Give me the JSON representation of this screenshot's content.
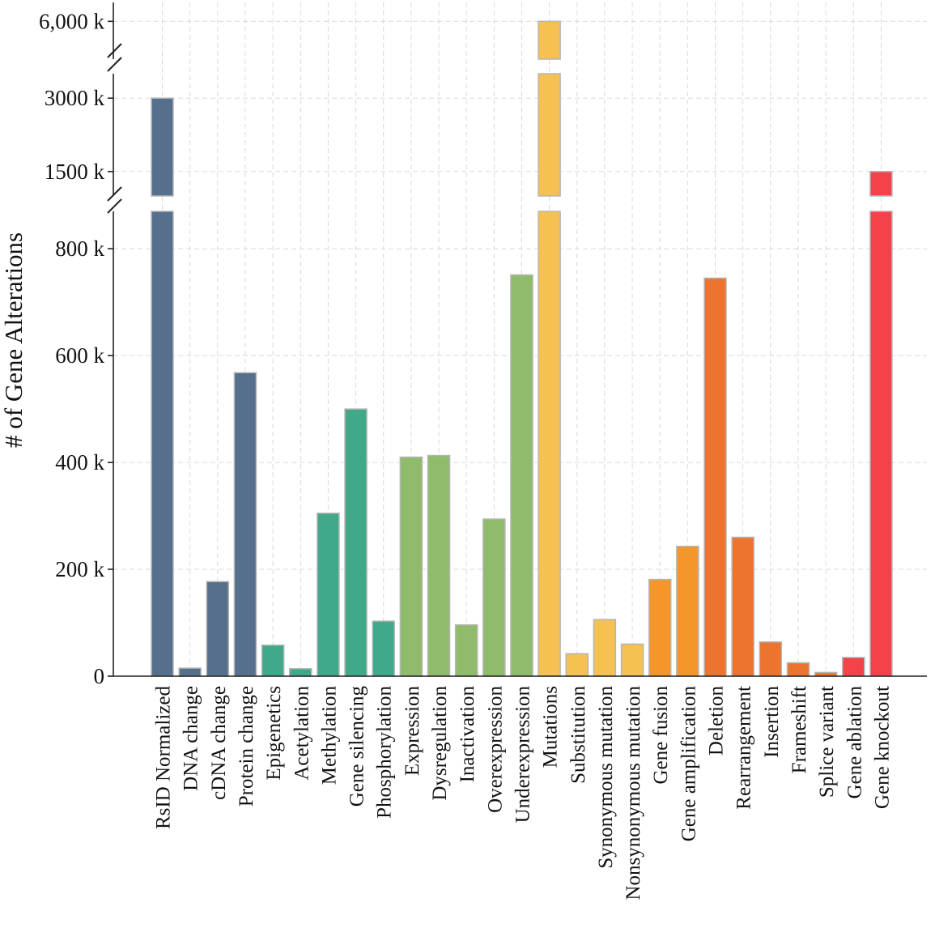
{
  "chart_data": {
    "type": "bar",
    "title": "",
    "xlabel": "",
    "ylabel": "# of Gene Alterations",
    "broken_axis": true,
    "segments": [
      {
        "name": "bottom",
        "ylim": [
          0,
          870
        ],
        "ticks": [
          0,
          200,
          400,
          600,
          800
        ],
        "tick_labels": [
          "0",
          "200 k",
          "400 k",
          "600 k",
          "800 k"
        ]
      },
      {
        "name": "middle",
        "ylim": [
          1000,
          3500
        ],
        "ticks": [
          1500,
          3000
        ],
        "tick_labels": [
          "1500 k",
          "3000 k"
        ]
      },
      {
        "name": "top",
        "ylim": [
          5000,
          6500
        ],
        "ticks": [
          6000
        ],
        "tick_labels": [
          "6,000 k"
        ]
      }
    ],
    "units": "thousands",
    "categories": [
      "RsID Normalized",
      "DNA change",
      "cDNA change",
      "Protein change",
      "Epigenetics",
      "Acetylation",
      "Methylation",
      "Gene silencing",
      "Phosphorylation",
      "Expression",
      "Dysregulation",
      "Inactivation",
      "Overexpression",
      "Underexpression",
      "Mutations",
      "Substitution",
      "Synonymous mutation",
      "Nonsynonymous mutation",
      "Gene fusion",
      "Gene amplification",
      "Deletion",
      "Rearrangement",
      "Insertion",
      "Frameshift",
      "Splice variant",
      "Gene ablation",
      "Gene knockout"
    ],
    "values": [
      3000,
      15,
      177,
      568,
      58,
      14,
      305,
      500,
      103,
      410,
      413,
      96,
      294,
      751,
      6000,
      42,
      106,
      60,
      181,
      243,
      745,
      260,
      64,
      25,
      7,
      35,
      1500
    ],
    "colors": [
      "#566f8c",
      "#566f8c",
      "#566f8c",
      "#566f8c",
      "#3fa98a",
      "#3fa98a",
      "#3fa98a",
      "#3fa98a",
      "#3fa98a",
      "#8fbb6b",
      "#8fbb6b",
      "#8fbb6b",
      "#8fbb6b",
      "#8fbb6b",
      "#f5c150",
      "#f5c150",
      "#f5c150",
      "#f5c150",
      "#f4962a",
      "#f4962a",
      "#ed742f",
      "#ed742f",
      "#ed742f",
      "#ed742f",
      "#ed742f",
      "#f5424a",
      "#f5424a"
    ]
  }
}
